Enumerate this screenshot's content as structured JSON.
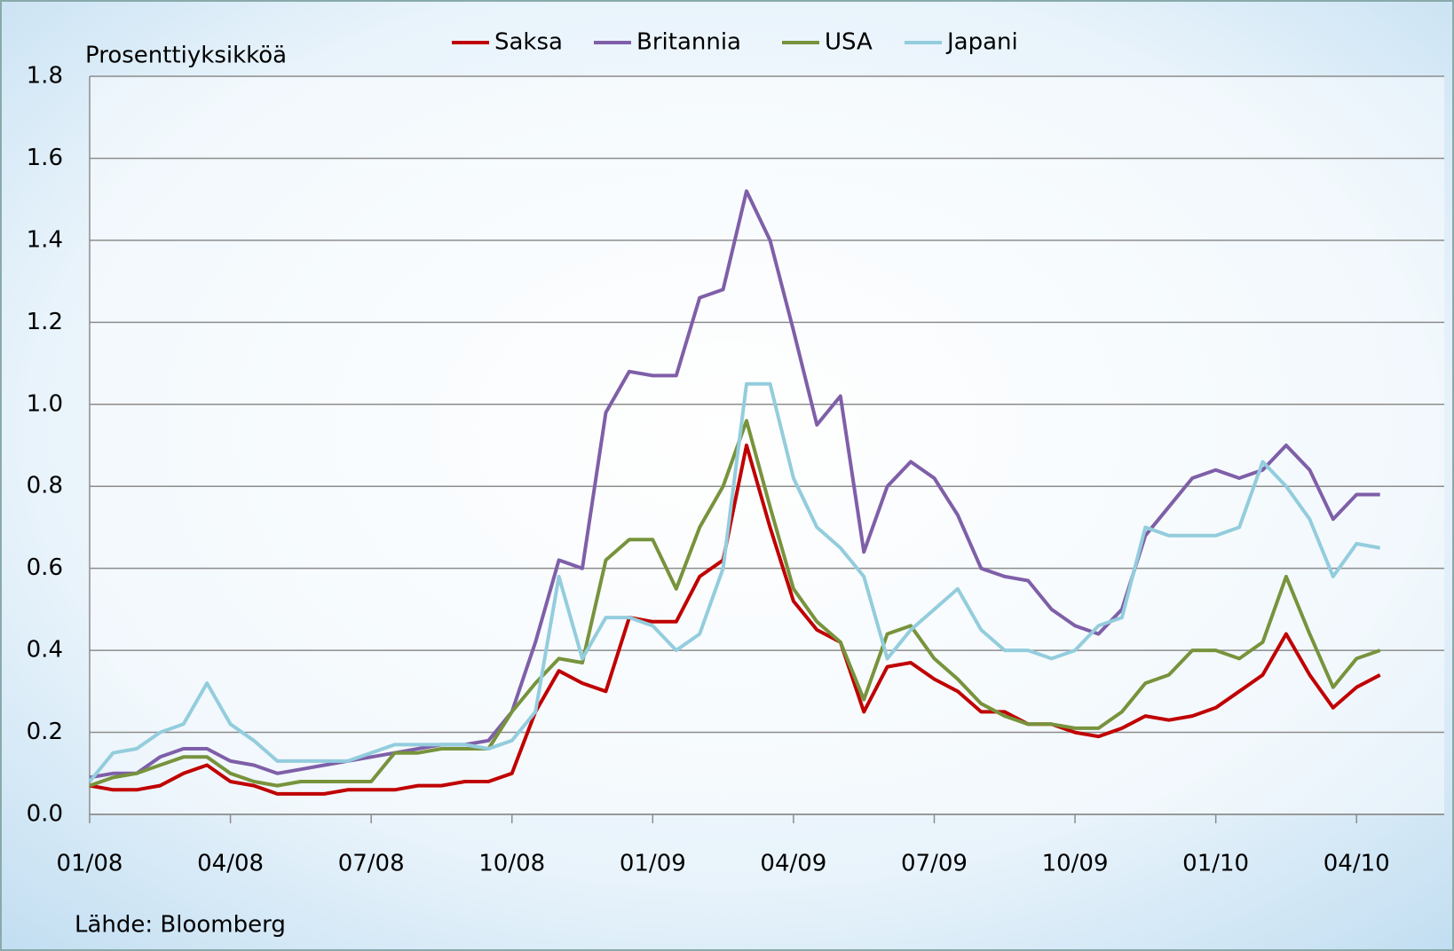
{
  "chart_data": {
    "type": "line",
    "y_label": "Prosenttiyksikköä",
    "source": "Lähde: Bloomberg",
    "legend": "top",
    "grid": true,
    "categories": [
      "01/08",
      null,
      null,
      null,
      null,
      null,
      "04/08",
      null,
      null,
      null,
      null,
      null,
      "07/08",
      null,
      null,
      null,
      null,
      null,
      "10/08",
      null,
      null,
      null,
      null,
      null,
      "01/09",
      null,
      null,
      null,
      null,
      null,
      "04/09",
      null,
      null,
      null,
      null,
      null,
      "07/09",
      null,
      null,
      null,
      null,
      null,
      "10/09",
      null,
      null,
      null,
      null,
      null,
      "01/10",
      null,
      null,
      null,
      null,
      null,
      "04/10",
      null
    ],
    "ylim": [
      0,
      1.8
    ],
    "yticks": [
      {
        "value": 0,
        "label": "0.0"
      },
      0.2,
      0.4,
      0.6,
      0.8,
      {
        "value": 1,
        "label": "1.0"
      },
      1.2,
      1.4,
      1.6,
      1.8
    ],
    "series": [
      {
        "name": "Saksa",
        "color": "#c00000",
        "values": [
          0.07,
          0.06,
          0.06,
          0.07,
          0.1,
          0.12,
          0.08,
          0.07,
          0.05,
          0.05,
          0.05,
          0.06,
          0.06,
          0.06,
          0.07,
          0.07,
          0.08,
          0.08,
          0.1,
          0.25,
          0.35,
          0.32,
          0.3,
          0.48,
          0.47,
          0.47,
          0.58,
          0.62,
          0.9,
          0.7,
          0.52,
          0.45,
          0.42,
          0.25,
          0.36,
          0.37,
          0.33,
          0.3,
          0.25,
          0.25,
          0.22,
          0.22,
          0.2,
          0.19,
          0.21,
          0.24,
          0.23,
          0.24,
          0.26,
          0.3,
          0.34,
          0.44,
          0.34,
          0.26,
          0.31,
          0.34
        ]
      },
      {
        "name": "Britannia",
        "color": "#7f5fa8",
        "values": [
          0.09,
          0.1,
          0.1,
          0.14,
          0.16,
          0.16,
          0.13,
          0.12,
          0.1,
          0.11,
          0.12,
          0.13,
          0.14,
          0.15,
          0.16,
          0.17,
          0.17,
          0.18,
          0.25,
          0.42,
          0.62,
          0.6,
          0.98,
          1.08,
          1.07,
          1.07,
          1.26,
          1.28,
          1.52,
          1.4,
          1.18,
          0.95,
          1.02,
          0.64,
          0.8,
          0.86,
          0.82,
          0.73,
          0.6,
          0.58,
          0.57,
          0.5,
          0.46,
          0.44,
          0.5,
          0.68,
          0.75,
          0.82,
          0.84,
          0.82,
          0.84,
          0.9,
          0.84,
          0.72,
          0.78,
          0.78
        ]
      },
      {
        "name": "USA",
        "color": "#77933c",
        "values": [
          0.07,
          0.09,
          0.1,
          0.12,
          0.14,
          0.14,
          0.1,
          0.08,
          0.07,
          0.08,
          0.08,
          0.08,
          0.08,
          0.15,
          0.15,
          0.16,
          0.16,
          0.16,
          0.25,
          0.32,
          0.38,
          0.37,
          0.62,
          0.67,
          0.67,
          0.55,
          0.7,
          0.8,
          0.96,
          0.75,
          0.55,
          0.47,
          0.42,
          0.28,
          0.44,
          0.46,
          0.38,
          0.33,
          0.27,
          0.24,
          0.22,
          0.22,
          0.21,
          0.21,
          0.25,
          0.32,
          0.34,
          0.4,
          0.4,
          0.38,
          0.42,
          0.58,
          0.44,
          0.31,
          0.38,
          0.4
        ]
      },
      {
        "name": "Japani",
        "color": "#93cddd",
        "values": [
          0.08,
          0.15,
          0.16,
          0.2,
          0.22,
          0.32,
          0.22,
          0.18,
          0.13,
          0.13,
          0.13,
          0.13,
          0.15,
          0.17,
          0.17,
          0.17,
          0.17,
          0.16,
          0.18,
          0.25,
          0.58,
          0.38,
          0.48,
          0.48,
          0.46,
          0.4,
          0.44,
          0.6,
          1.05,
          1.05,
          0.82,
          0.7,
          0.65,
          0.58,
          0.38,
          0.45,
          0.5,
          0.55,
          0.45,
          0.4,
          0.4,
          0.38,
          0.4,
          0.46,
          0.48,
          0.7,
          0.68,
          0.68,
          0.68,
          0.7,
          0.86,
          0.8,
          0.72,
          0.58,
          0.66,
          0.65
        ]
      }
    ]
  }
}
